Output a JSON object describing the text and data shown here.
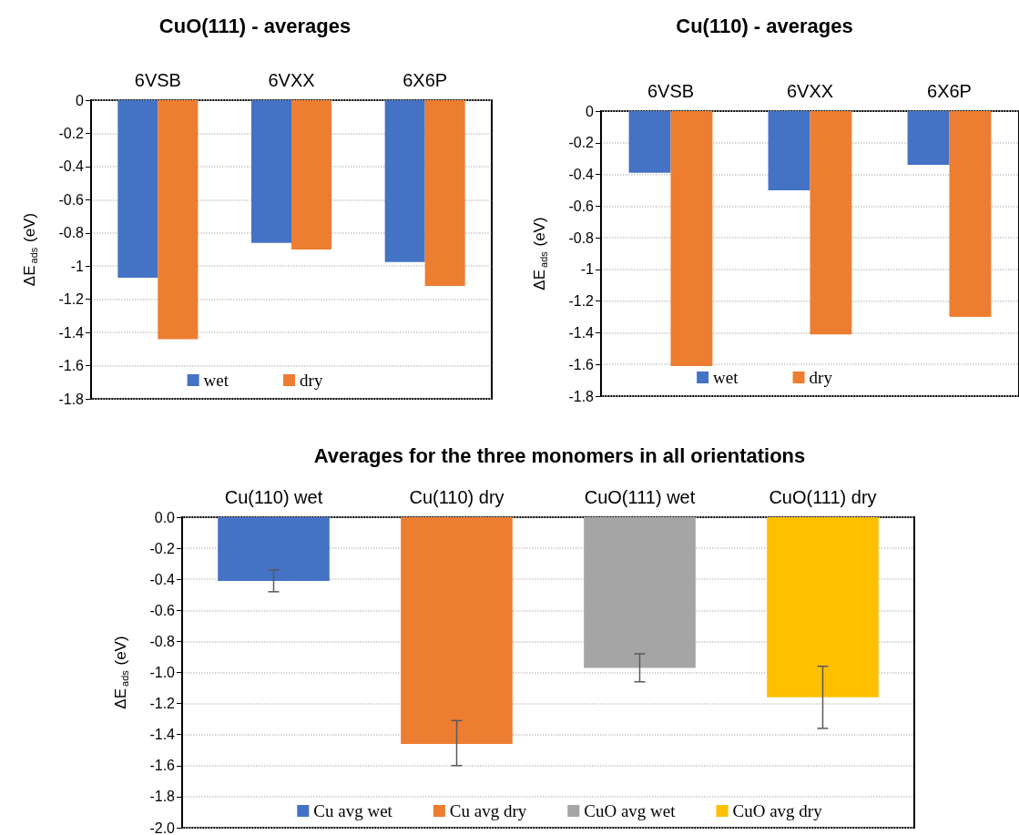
{
  "chart_data": [
    {
      "type": "bar",
      "title": "CuO(111) - averages",
      "ylabel": "ΔE$_{ads}$ (eV)",
      "categories": [
        "6VSB",
        "6VXX",
        "6X6P"
      ],
      "series": [
        {
          "name": "wet",
          "color": "#4472c4",
          "values": [
            -1.07,
            -0.86,
            -0.975
          ]
        },
        {
          "name": "dry",
          "color": "#ed7d31",
          "values": [
            -1.44,
            -0.9,
            -1.12
          ]
        }
      ],
      "ylim": [
        -1.8,
        0
      ],
      "yticks": [
        0,
        -0.2,
        -0.4,
        -0.6,
        -0.8,
        -1,
        -1.2,
        -1.4,
        -1.6,
        -1.8
      ],
      "grid": "y",
      "legend": "bottom"
    },
    {
      "type": "bar",
      "title": "Cu(110) - averages",
      "ylabel": "ΔE$_{ads}$ (eV)",
      "categories": [
        "6VSB",
        "6VXX",
        "6X6P"
      ],
      "series": [
        {
          "name": "wet",
          "color": "#4472c4",
          "values": [
            -0.39,
            -0.5,
            -0.34
          ]
        },
        {
          "name": "dry",
          "color": "#ed7d31",
          "values": [
            -1.61,
            -1.41,
            -1.3
          ]
        }
      ],
      "ylim": [
        -1.8,
        0
      ],
      "yticks": [
        0,
        -0.2,
        -0.4,
        -0.6,
        -0.8,
        -1,
        -1.2,
        -1.4,
        -1.6,
        -1.8
      ],
      "grid": "y",
      "legend": "bottom"
    },
    {
      "type": "bar",
      "title": "Averages for the three monomers in all orientations",
      "ylabel": "ΔE$_{ads}$ (eV)",
      "categories": [
        "Cu(110) wet",
        "Cu(110) dry",
        "CuO(111) wet",
        "CuO(111) dry"
      ],
      "stacked": true,
      "series": [
        {
          "name": "Cu avg wet",
          "color": "#4472c4",
          "values": [
            -0.41,
            null,
            null,
            null
          ],
          "errors": [
            [
              -0.48,
              -0.34
            ],
            null,
            null,
            null
          ]
        },
        {
          "name": "Cu avg dry",
          "color": "#ed7d31",
          "values": [
            null,
            -1.46,
            null,
            null
          ],
          "errors": [
            null,
            [
              -1.6,
              -1.31
            ],
            null,
            null
          ]
        },
        {
          "name": "CuO avg wet",
          "color": "#a5a5a5",
          "values": [
            null,
            null,
            -0.97,
            null
          ],
          "errors": [
            null,
            null,
            [
              -1.06,
              -0.88
            ],
            null
          ]
        },
        {
          "name": "CuO avg dry",
          "color": "#ffc000",
          "values": [
            null,
            null,
            null,
            -1.16
          ],
          "errors": [
            null,
            null,
            null,
            [
              -1.36,
              -0.96
            ]
          ]
        }
      ],
      "ylim": [
        -2,
        0
      ],
      "yticks": [
        {
          "value": 0,
          "label": "0.0"
        },
        {
          "value": -0.2,
          "label": "-0.2"
        },
        {
          "value": -0.4,
          "label": "-0.4"
        },
        {
          "value": -0.6,
          "label": "-0.6"
        },
        {
          "value": -0.8,
          "label": "-0.8"
        },
        {
          "value": -1,
          "label": "-1.0"
        },
        {
          "value": -1.2,
          "label": "-1.2"
        },
        {
          "value": -1.4,
          "label": "-1.4"
        },
        {
          "value": -1.6,
          "label": "-1.6"
        },
        {
          "value": -1.8,
          "label": "-1.8"
        },
        {
          "value": -2,
          "label": "-2.0"
        }
      ],
      "grid": "y",
      "legend": "bottom"
    }
  ]
}
